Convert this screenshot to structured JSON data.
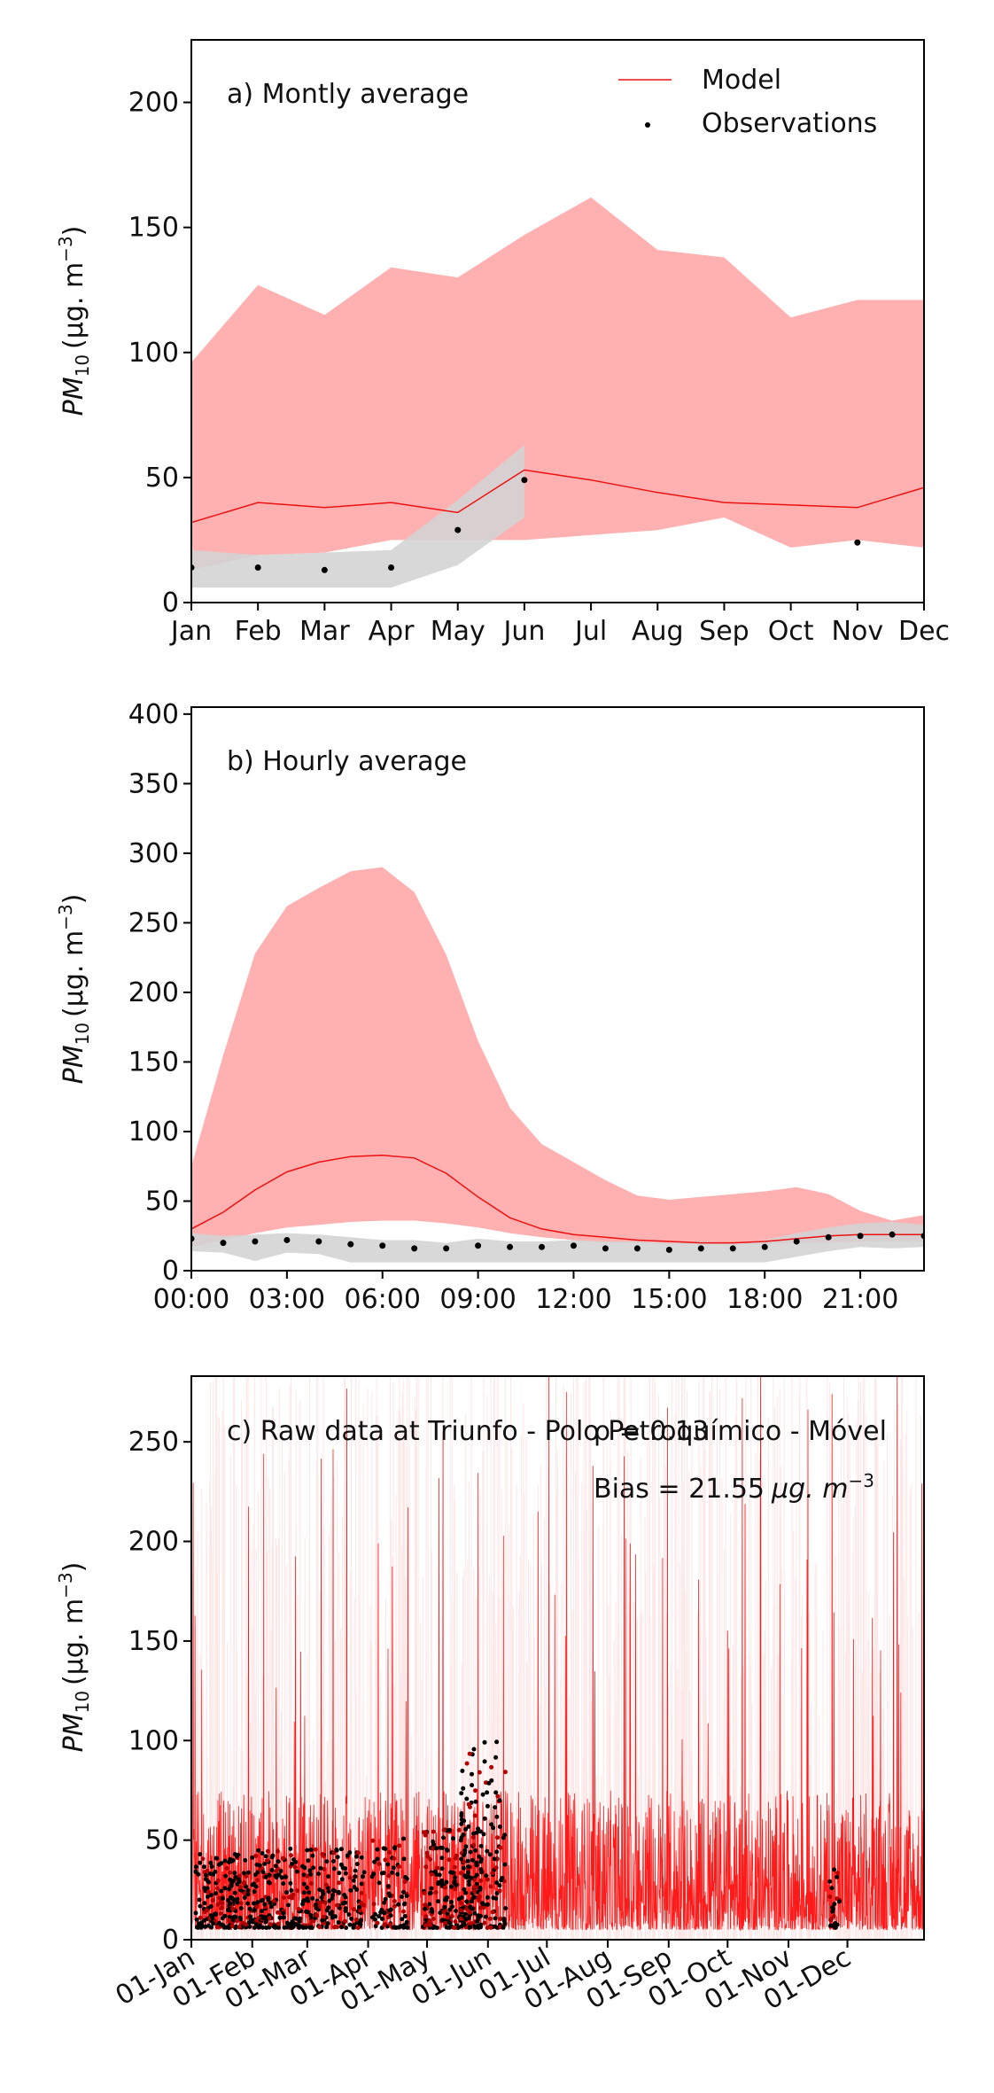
{
  "legend": {
    "model_label": "Model",
    "obs_label": "Observations"
  },
  "colors": {
    "model_line": "#ee1111",
    "model_band": "#ffb0b0",
    "obs_band": "#d4d4d4",
    "obs_points": "#000000",
    "raw_band": "#fde6e6"
  },
  "chart_data": [
    {
      "type": "line",
      "title": "a) Montly average",
      "ylabel_base": "PM",
      "ylabel_sub": "10",
      "ylabel_units": "(μg. m",
      "ylabel_sup": "−3",
      "ylabel_close": ")",
      "ylim": [
        0,
        225
      ],
      "yticks": [
        0,
        50,
        100,
        150,
        200
      ],
      "categories": [
        "Jan",
        "Feb",
        "Mar",
        "Apr",
        "May",
        "Jun",
        "Jul",
        "Aug",
        "Sep",
        "Oct",
        "Nov",
        "Dec"
      ],
      "series": [
        {
          "name": "Model",
          "values": [
            32,
            40,
            38,
            40,
            36,
            53,
            49,
            44,
            40,
            39,
            38,
            46
          ],
          "band_lower": [
            13,
            19,
            20,
            25,
            25,
            25,
            27,
            29,
            34,
            22,
            25,
            22
          ],
          "band_upper": [
            96,
            127,
            115,
            134,
            130,
            147,
            162,
            141,
            138,
            114,
            121,
            121
          ]
        },
        {
          "name": "Observations",
          "x": [
            0,
            1,
            2,
            3,
            4,
            5,
            10
          ],
          "values": [
            14,
            14,
            13,
            14,
            29,
            49,
            24
          ],
          "band_x": [
            0,
            1,
            2,
            3,
            4,
            5
          ],
          "band_lower": [
            6,
            6,
            6,
            6,
            15,
            34
          ],
          "band_upper": [
            21,
            19,
            20,
            21,
            41,
            63
          ]
        }
      ]
    },
    {
      "type": "line",
      "title": "b) Hourly average",
      "ylabel_base": "PM",
      "ylabel_sub": "10",
      "ylabel_units": "(μg. m",
      "ylabel_sup": "−3",
      "ylabel_close": ")",
      "ylim": [
        0,
        405
      ],
      "yticks": [
        0,
        50,
        100,
        150,
        200,
        250,
        300,
        350,
        400
      ],
      "xlim": [
        0,
        23
      ],
      "xticks": [
        0,
        3,
        6,
        9,
        12,
        15,
        18,
        21
      ],
      "xtick_labels": [
        "00:00",
        "03:00",
        "06:00",
        "09:00",
        "12:00",
        "15:00",
        "18:00",
        "21:00"
      ],
      "series": [
        {
          "name": "Model",
          "x": [
            0,
            1,
            2,
            3,
            4,
            5,
            6,
            7,
            8,
            9,
            10,
            11,
            12,
            13,
            14,
            15,
            16,
            17,
            18,
            19,
            20,
            21,
            22,
            23
          ],
          "values": [
            30,
            42,
            58,
            71,
            78,
            82,
            83,
            81,
            70,
            53,
            38,
            30,
            26,
            24,
            22,
            21,
            20,
            20,
            21,
            23,
            25,
            26,
            26,
            26
          ],
          "band_lower": [
            17,
            22,
            27,
            31,
            33,
            35,
            36,
            36,
            34,
            31,
            27,
            24,
            22,
            20,
            20,
            19,
            19,
            19,
            19,
            20,
            20,
            21,
            21,
            21
          ],
          "band_upper": [
            75,
            155,
            228,
            262,
            275,
            287,
            290,
            272,
            227,
            165,
            117,
            91,
            78,
            65,
            54,
            51,
            53,
            55,
            57,
            60,
            55,
            43,
            36,
            40
          ]
        },
        {
          "name": "Observations",
          "x": [
            0,
            1,
            2,
            3,
            4,
            5,
            6,
            7,
            8,
            9,
            10,
            11,
            12,
            13,
            14,
            15,
            16,
            17,
            18,
            19,
            20,
            21,
            22,
            23
          ],
          "values": [
            23,
            20,
            21,
            22,
            21,
            19,
            18,
            16,
            16,
            18,
            17,
            17,
            18,
            16,
            16,
            15,
            16,
            16,
            17,
            21,
            24,
            25,
            26,
            25
          ],
          "band_lower": [
            14,
            13,
            7,
            13,
            12,
            6,
            6,
            6,
            6,
            6,
            6,
            6,
            6,
            6,
            6,
            6,
            6,
            6,
            6,
            10,
            14,
            17,
            16,
            17
          ],
          "band_upper": [
            27,
            25,
            26,
            27,
            26,
            24,
            22,
            22,
            20,
            23,
            21,
            21,
            22,
            21,
            21,
            20,
            21,
            20,
            22,
            27,
            31,
            34,
            35,
            33
          ]
        }
      ]
    },
    {
      "type": "line",
      "title": "c) Raw data at Triunfo - Polo Petroquímico - Móvel",
      "stat_r": "ρ = 0.13",
      "stat_bias_prefix": "Bias = 21.55",
      "stat_bias_units": "μg. m",
      "stat_bias_sup": "−3",
      "ylabel_base": "PM",
      "ylabel_sub": "10",
      "ylabel_units": "(μg. m",
      "ylabel_sup": "−3",
      "ylabel_close": ")",
      "ylim": [
        0,
        283
      ],
      "yticks": [
        0,
        50,
        100,
        150,
        200,
        250
      ],
      "xtick_labels": [
        "01-Jan",
        "01-Feb",
        "01-Mar",
        "01-Apr",
        "01-May",
        "01-Jun",
        "01-Jul",
        "01-Aug",
        "01-Sep",
        "01-Oct",
        "01-Nov",
        "01-Dec"
      ],
      "xtick_days": [
        0,
        31,
        59,
        90,
        120,
        151,
        181,
        212,
        243,
        273,
        304,
        334
      ],
      "xlim_days": [
        0,
        373
      ],
      "series": [
        {
          "name": "Model",
          "x_days": [
            0,
            373
          ],
          "typical_range": [
            5,
            70
          ]
        },
        {
          "name": "Observations",
          "x_days": [
            0,
            160
          ],
          "typical_range": [
            6,
            60
          ]
        }
      ]
    }
  ]
}
